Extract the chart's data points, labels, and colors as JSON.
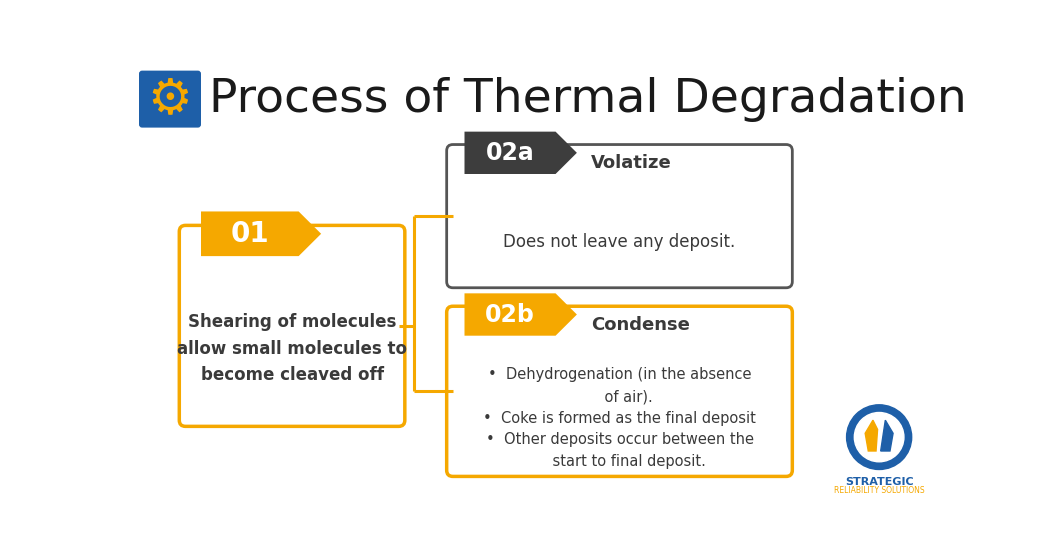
{
  "title": "Process of Thermal Degradation",
  "bg_color": "#ffffff",
  "title_color": "#1a1a1a",
  "title_fontsize": 34,
  "gear_box_color": "#1e5fa8",
  "arrow_color": "#f5a800",
  "dark_arrow_color": "#3d3d3d",
  "box_border_color": "#f5a800",
  "dark_box_border_color": "#555555",
  "label_01": "01",
  "label_02a": "02a",
  "label_02b": "02b",
  "box1_text": "Shearing of molecules\nallow small molecules to\nbecome cleaved off",
  "box2a_title": "Volatize",
  "box2a_text": "Does not leave any deposit.",
  "box2b_title": "Condense",
  "box2b_bullet1": "•  Dehydrogenation (in the absence\n    of air).",
  "box2b_bullet2": "•  Coke is formed as the final deposit",
  "box2b_bullet3": "•  Other deposits occur between the\n    start to final deposit.",
  "connector_color": "#f5a800",
  "text_color": "#3a3a3a",
  "logo_outer_color": "#1e5fa8",
  "logo_text_color": "#1e5fa8",
  "logo_subtext_color": "#f5a800"
}
